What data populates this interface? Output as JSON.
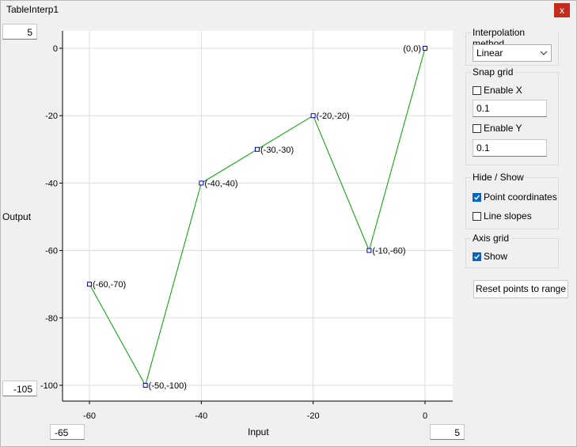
{
  "window": {
    "title": "TableInterp1",
    "close_label": "x"
  },
  "plot": {
    "y_max_box": "5",
    "y_min_box": "-105",
    "x_min_box": "-65",
    "x_max_box": "5",
    "y_title": "Output",
    "x_title": "Input",
    "line_color": "#00a000",
    "point_color": "#0000cc"
  },
  "panel": {
    "interp": {
      "title": "Interpolation method",
      "value": "Linear"
    },
    "snap": {
      "title": "Snap grid",
      "enable_x": "Enable X",
      "enable_x_checked": false,
      "x_value": "0.1",
      "enable_y": "Enable Y",
      "enable_y_checked": false,
      "y_value": "0.1"
    },
    "hideshow": {
      "title": "Hide / Show",
      "point_coords": "Point coordinates",
      "point_coords_checked": true,
      "line_slopes": "Line slopes",
      "line_slopes_checked": false
    },
    "axisgrid": {
      "title": "Axis grid",
      "show": "Show",
      "show_checked": true
    },
    "reset_label": "Reset points to range"
  },
  "chart_data": {
    "type": "line",
    "xlabel": "Input",
    "ylabel": "Output",
    "xlim": [
      -65,
      5
    ],
    "ylim": [
      -105,
      5
    ],
    "x_ticks": [
      -60,
      -40,
      -20,
      0
    ],
    "y_ticks": [
      0,
      -20,
      -40,
      -60,
      -80,
      -100
    ],
    "grid": true,
    "series": [
      {
        "x": [
          -60,
          -50,
          -40,
          -30,
          -20,
          -10,
          0
        ],
        "y": [
          -70,
          -100,
          -40,
          -30,
          -20,
          -60,
          0
        ],
        "labels": [
          "(-60,-70)",
          "(-50,-100)",
          "(-40,-40)",
          "(-30,-30)",
          "(-20,-20)",
          "(-10,-60)",
          "(0,0)"
        ]
      }
    ]
  }
}
